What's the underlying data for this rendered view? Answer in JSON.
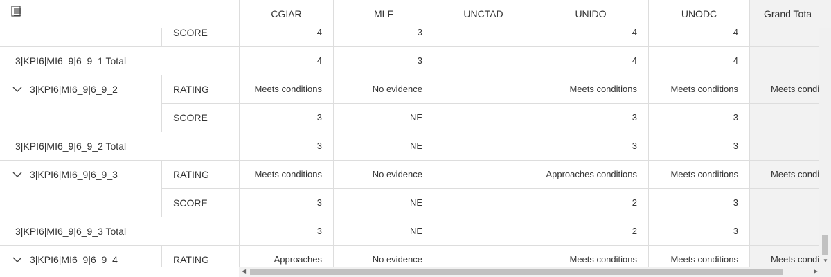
{
  "columns": [
    "CGIAR",
    "MLF",
    "UNCTAD",
    "UNIDO",
    "UNODC",
    "Grand Tota"
  ],
  "rows": [
    {
      "type": "sub",
      "label": "SCORE",
      "values": [
        "4",
        "3",
        "",
        "4",
        "4",
        ""
      ]
    },
    {
      "type": "total",
      "name": "3|KPI6|MI6_9|6_9_1 Total",
      "values": [
        "4",
        "3",
        "",
        "4",
        "4",
        ""
      ]
    },
    {
      "type": "group",
      "name": "3|KPI6|MI6_9|6_9_2",
      "label": "RATING",
      "values": [
        "Meets conditions",
        "No evidence",
        "",
        "Meets conditions",
        "Meets conditions",
        "Meets conditi"
      ]
    },
    {
      "type": "sub",
      "label": "SCORE",
      "values": [
        "3",
        "NE",
        "",
        "3",
        "3",
        ""
      ]
    },
    {
      "type": "total",
      "name": "3|KPI6|MI6_9|6_9_2 Total",
      "values": [
        "3",
        "NE",
        "",
        "3",
        "3",
        ""
      ]
    },
    {
      "type": "group",
      "name": "3|KPI6|MI6_9|6_9_3",
      "label": "RATING",
      "values": [
        "Meets conditions",
        "No evidence",
        "",
        "Approaches conditions",
        "Meets conditions",
        "Meets conditi"
      ]
    },
    {
      "type": "sub",
      "label": "SCORE",
      "values": [
        "3",
        "NE",
        "",
        "2",
        "3",
        ""
      ]
    },
    {
      "type": "total",
      "name": "3|KPI6|MI6_9|6_9_3 Total",
      "values": [
        "3",
        "NE",
        "",
        "2",
        "3",
        ""
      ]
    },
    {
      "type": "group",
      "name": "3|KPI6|MI6_9|6_9_4",
      "label": "RATING",
      "values": [
        "Approaches",
        "No evidence",
        "",
        "Meets conditions",
        "Meets conditions",
        "Meets conditi"
      ]
    }
  ]
}
